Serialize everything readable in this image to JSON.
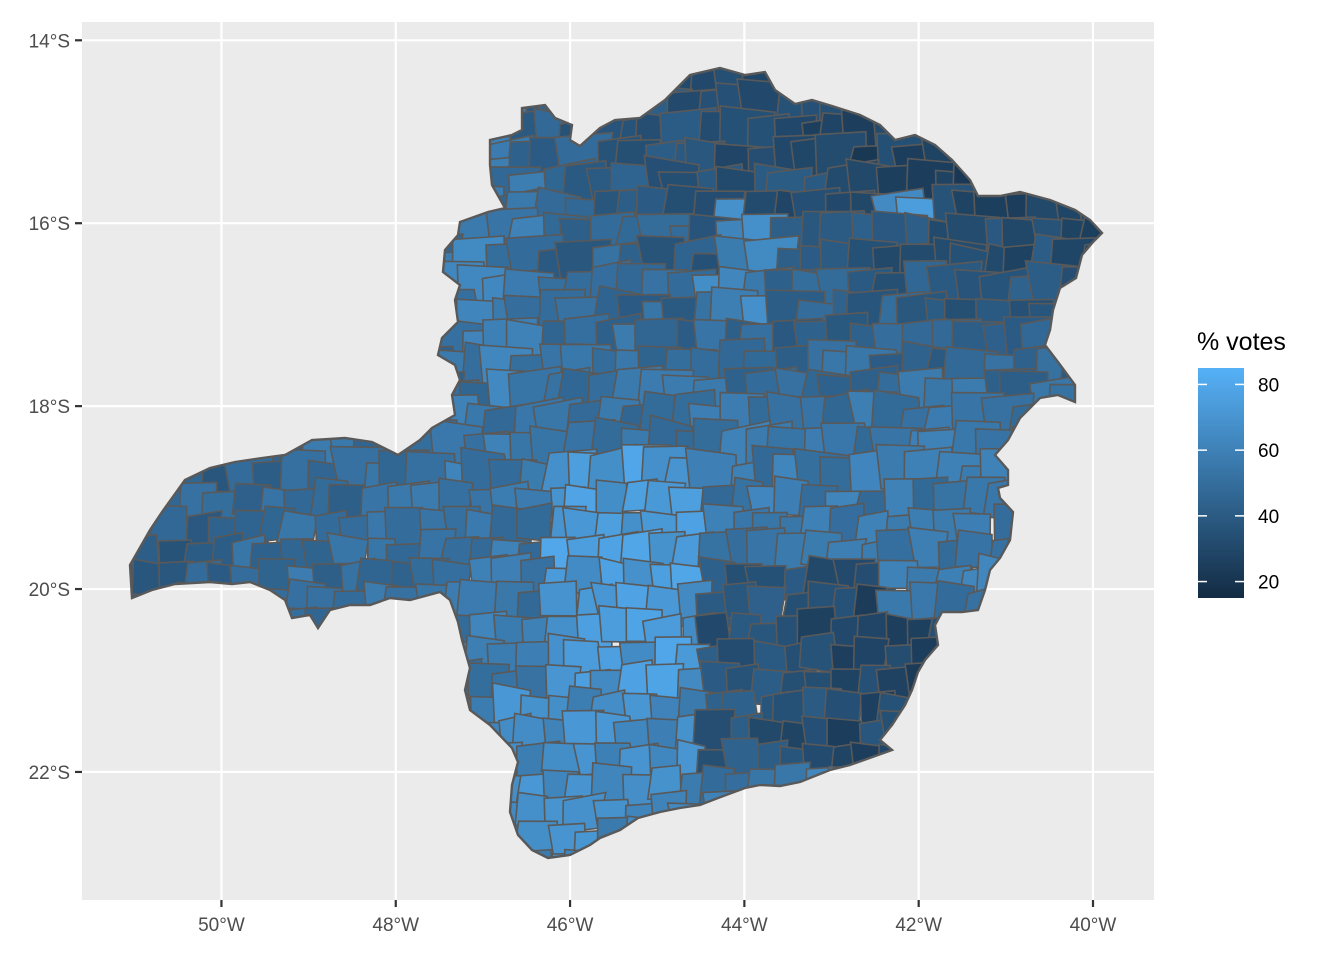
{
  "chart_data": {
    "type": "choropleth",
    "region": "Minas Gerais municipalities",
    "xlabel": "",
    "ylabel": "",
    "x_ticks": [
      "50°W",
      "48°W",
      "46°W",
      "44°W",
      "42°W",
      "40°W"
    ],
    "x_tick_values": [
      -50,
      -48,
      -46,
      -44,
      -42,
      -40
    ],
    "y_ticks": [
      "14°S",
      "16°S",
      "18°S",
      "20°S",
      "22°S"
    ],
    "y_tick_values": [
      -14,
      -16,
      -18,
      -20,
      -22
    ],
    "xlim": [
      -51.6,
      -39.3
    ],
    "ylim": [
      -23.4,
      -13.8
    ],
    "grid": true,
    "legend": {
      "title": "% votes",
      "position": "right",
      "type": "colorbar",
      "ticks": [
        "80",
        "60",
        "40",
        "20"
      ],
      "tick_values": [
        80,
        60,
        40,
        20
      ],
      "range": [
        15,
        85
      ],
      "low_color": "#132B43",
      "high_color": "#56B1F7"
    },
    "colors": {
      "panel_background": "#EBEBEB",
      "grid": "#FFFFFF",
      "region_border": "#595959",
      "axis_text": "#4D4D4D"
    }
  }
}
